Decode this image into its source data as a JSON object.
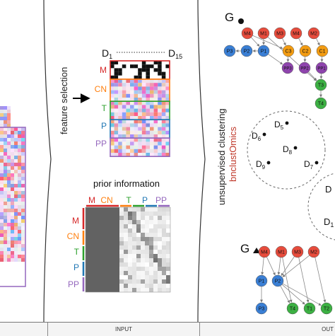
{
  "feature_selection": {
    "label": "feature selection",
    "d_first": "D",
    "d_first_sub": "1",
    "d_last": "D",
    "d_last_sub": "15"
  },
  "omics_labels": [
    {
      "text": "M",
      "color": "#d62728"
    },
    {
      "text": "CN",
      "color": "#ff7f0e"
    },
    {
      "text": "T",
      "color": "#2ca02c"
    },
    {
      "text": "P",
      "color": "#1f77b4"
    },
    {
      "text": "PP",
      "color": "#9467bd"
    }
  ],
  "prior_information": {
    "title": "prior information"
  },
  "clustering": {
    "label": "unsupervised clustering",
    "method": "bnclustOmics",
    "method_color": "#c0392b"
  },
  "graph_top": {
    "name": "G",
    "marker": "circle"
  },
  "graph_bottom": {
    "name": "G",
    "marker": "triangle"
  },
  "cluster_samples": [
    {
      "label": "D",
      "sub": "5"
    },
    {
      "label": "D",
      "sub": "6"
    },
    {
      "label": "D",
      "sub": "8"
    },
    {
      "label": "D",
      "sub": "9"
    },
    {
      "label": "D",
      "sub": "7"
    }
  ],
  "partial_labels": {
    "second_cluster_d": "D",
    "second_cluster_sub": "1"
  },
  "nodes_top": [
    {
      "id": "M4",
      "label": "M4",
      "color": "#e74c3c"
    },
    {
      "id": "M1",
      "label": "M1",
      "color": "#e74c3c"
    },
    {
      "id": "M3",
      "label": "M3",
      "color": "#e74c3c"
    },
    {
      "id": "M4b",
      "label": "M4",
      "color": "#e74c3c"
    },
    {
      "id": "M2",
      "label": "M2",
      "color": "#e74c3c"
    },
    {
      "id": "P3",
      "label": "P3",
      "color": "#3a7fd5"
    },
    {
      "id": "P2",
      "label": "P2",
      "color": "#3a7fd5"
    },
    {
      "id": "P1",
      "label": "P1",
      "color": "#3a7fd5"
    },
    {
      "id": "C3",
      "label": "C3",
      "color": "#f39c12"
    },
    {
      "id": "C2",
      "label": "C2",
      "color": "#f39c12"
    },
    {
      "id": "C1",
      "label": "C1",
      "color": "#f39c12"
    },
    {
      "id": "PP3",
      "label": "PP3",
      "color": "#8e44ad"
    },
    {
      "id": "PP2",
      "label": "PP2",
      "color": "#8e44ad"
    },
    {
      "id": "PP1",
      "label": "PP1",
      "color": "#8e44ad"
    },
    {
      "id": "T3",
      "label": "T3",
      "color": "#3cb043"
    },
    {
      "id": "T4",
      "label": "T4",
      "color": "#3cb043"
    }
  ],
  "nodes_bottom": [
    {
      "id": "M4",
      "label": "M4",
      "color": "#e74c3c"
    },
    {
      "id": "M1",
      "label": "M1",
      "color": "#e74c3c"
    },
    {
      "id": "M3",
      "label": "M3",
      "color": "#e74c3c"
    },
    {
      "id": "M2",
      "label": "M2",
      "color": "#e74c3c"
    },
    {
      "id": "P1",
      "label": "P1",
      "color": "#3a7fd5"
    },
    {
      "id": "P2",
      "label": "P2",
      "color": "#3a7fd5"
    },
    {
      "id": "P3",
      "label": "P3",
      "color": "#3a7fd5"
    },
    {
      "id": "T4",
      "label": "T4",
      "color": "#3cb043"
    },
    {
      "id": "T1",
      "label": "T1",
      "color": "#3cb043"
    },
    {
      "id": "T2",
      "label": "T2",
      "color": "#3cb043"
    }
  ],
  "footer": {
    "input": "INPUT",
    "output": "OUT"
  }
}
